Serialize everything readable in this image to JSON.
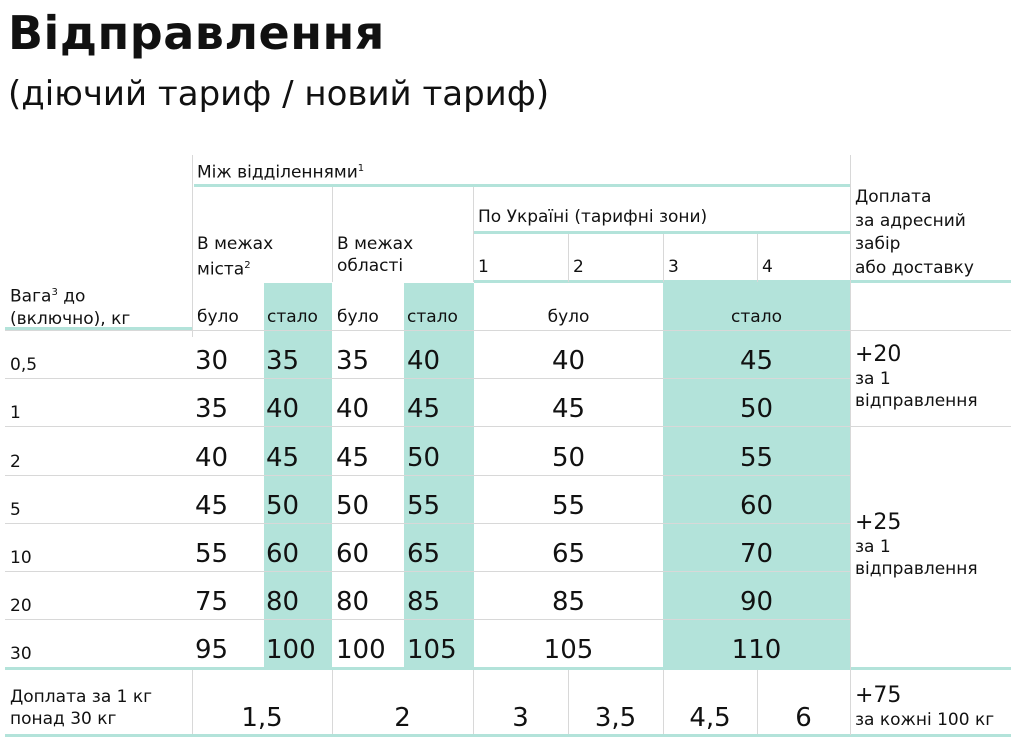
{
  "title": "Відправлення",
  "subtitle": "(діючий тариф / новий тариф)",
  "header": {
    "between_branches": "Між відділеннями",
    "between_branches_sup": "1",
    "city_line1": "В межах",
    "city_line2": "міста",
    "city_sup": "2",
    "region_line1": "В межах",
    "region_line2": "області",
    "ukraine": "По Україні (тарифні зони)",
    "zones": [
      "1",
      "2",
      "3",
      "4"
    ],
    "surcharge_lines": [
      "Доплата",
      "за адресний",
      "забір",
      "або доставку"
    ],
    "weight_line1": "Вага",
    "weight_sup": "3",
    "weight_line1_rest": " до",
    "weight_line2": "(включно), кг",
    "was": "було",
    "now": "стало"
  },
  "rows": [
    {
      "weight": "0,5",
      "city_was": "30",
      "city_now": "35",
      "region_was": "35",
      "region_now": "40",
      "ua_was": "40",
      "ua_now": "45"
    },
    {
      "weight": "1",
      "city_was": "35",
      "city_now": "40",
      "region_was": "40",
      "region_now": "45",
      "ua_was": "45",
      "ua_now": "50"
    },
    {
      "weight": "2",
      "city_was": "40",
      "city_now": "45",
      "region_was": "45",
      "region_now": "50",
      "ua_was": "50",
      "ua_now": "55"
    },
    {
      "weight": "5",
      "city_was": "45",
      "city_now": "50",
      "region_was": "50",
      "region_now": "55",
      "ua_was": "55",
      "ua_now": "60"
    },
    {
      "weight": "10",
      "city_was": "55",
      "city_now": "60",
      "region_was": "60",
      "region_now": "65",
      "ua_was": "65",
      "ua_now": "70"
    },
    {
      "weight": "20",
      "city_was": "75",
      "city_now": "80",
      "region_was": "80",
      "region_now": "85",
      "ua_was": "85",
      "ua_now": "90"
    },
    {
      "weight": "30",
      "city_was": "95",
      "city_now": "100",
      "region_was": "100",
      "region_now": "105",
      "ua_was": "105",
      "ua_now": "110"
    }
  ],
  "surcharge_groups": [
    {
      "amount": "+20",
      "line1": "за 1",
      "line2": "відправлення"
    },
    {
      "amount": "+25",
      "line1": "за 1",
      "line2": "відправлення"
    }
  ],
  "footer": {
    "label_line1": "Доплата за 1 кг",
    "label_line2": "понад 30 кг",
    "city": "1,5",
    "region": "2",
    "zones": [
      "3",
      "3,5",
      "4,5",
      "6"
    ],
    "extra_amount": "+75",
    "extra_text": "за кожні 100 кг"
  },
  "colors": {
    "accent": "#b3e3da",
    "text": "#111111"
  }
}
